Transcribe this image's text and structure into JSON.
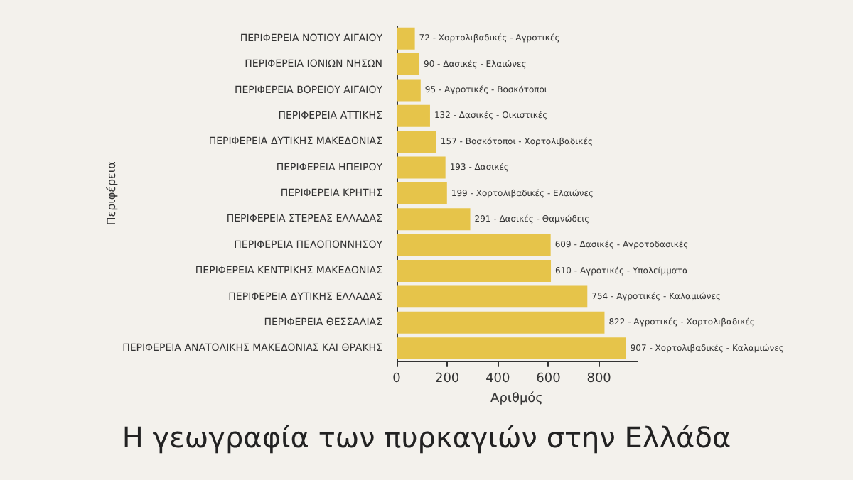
{
  "chart_data": {
    "type": "bar",
    "orientation": "horizontal",
    "title": "Η γεωγραφία των πυρκαγιών στην Ελλάδα",
    "xlabel": "Αριθμός",
    "ylabel": "Περιφέρεια",
    "categories": [
      "ΠΕΡΙΦΕΡΕΙΑ ΝΟΤΙΟΥ ΑΙΓΑΙΟΥ",
      "ΠΕΡΙΦΕΡΕΙΑ ΙΟΝΙΩΝ ΝΗΣΩΝ",
      "ΠΕΡΙΦΕΡΕΙΑ ΒΟΡΕΙΟΥ ΑΙΓΑΙΟΥ",
      "ΠΕΡΙΦΕΡΕΙΑ ΑΤΤΙΚΗΣ",
      "ΠΕΡΙΦΕΡΕΙΑ ΔΥΤΙΚΗΣ ΜΑΚΕΔΟΝΙΑΣ",
      "ΠΕΡΙΦΕΡΕΙΑ ΗΠΕΙΡΟΥ",
      "ΠΕΡΙΦΕΡΕΙΑ ΚΡΗΤΗΣ",
      "ΠΕΡΙΦΕΡΕΙΑ ΣΤΕΡΕΑΣ ΕΛΛΑΔΑΣ",
      "ΠΕΡΙΦΕΡΕΙΑ ΠΕΛΟΠΟΝΝΗΣΟΥ",
      "ΠΕΡΙΦΕΡΕΙΑ ΚΕΝΤΡΙΚΗΣ ΜΑΚΕΔΟΝΙΑΣ",
      "ΠΕΡΙΦΕΡΕΙΑ ΔΥΤΙΚΗΣ ΕΛΛΑΔΑΣ",
      "ΠΕΡΙΦΕΡΕΙΑ ΘΕΣΣΑΛΙΑΣ",
      "ΠΕΡΙΦΕΡΕΙΑ ΑΝΑΤΟΛΙΚΗΣ ΜΑΚΕΔΟΝΙΑΣ ΚΑΙ ΘΡΑΚΗΣ"
    ],
    "values": [
      72,
      90,
      95,
      132,
      157,
      193,
      199,
      291,
      609,
      610,
      754,
      822,
      907
    ],
    "value_labels": [
      "72 - Χορτολιβαδικές - Αγροτικές",
      "90 - Δασικές - Ελαιώνες",
      "95 - Αγροτικές - Βοσκότοποι",
      "132 - Δασικές - Οικιστικές",
      "157 - Βοσκότοποι - Χορτολιβαδικές",
      "193 - Δασικές",
      "199 - Χορτολιβαδικές - Ελαιώνες",
      "291 - Δασικές - Θαμνώδεις",
      "609 - Δασικές - Αγροτοδασικές",
      "610 - Αγροτικές - Υπολείμματα",
      "754 - Αγροτικές - Καλαμιώνες",
      "822 - Αγροτικές - Χορτολιβαδικές",
      "907 - Χορτολιβαδικές - Καλαμιώνες"
    ],
    "color": "#e6c44a",
    "xlim": [
      0,
      950
    ],
    "xticks": [
      0,
      200,
      400,
      600,
      800
    ],
    "grid": false,
    "legend": false
  }
}
